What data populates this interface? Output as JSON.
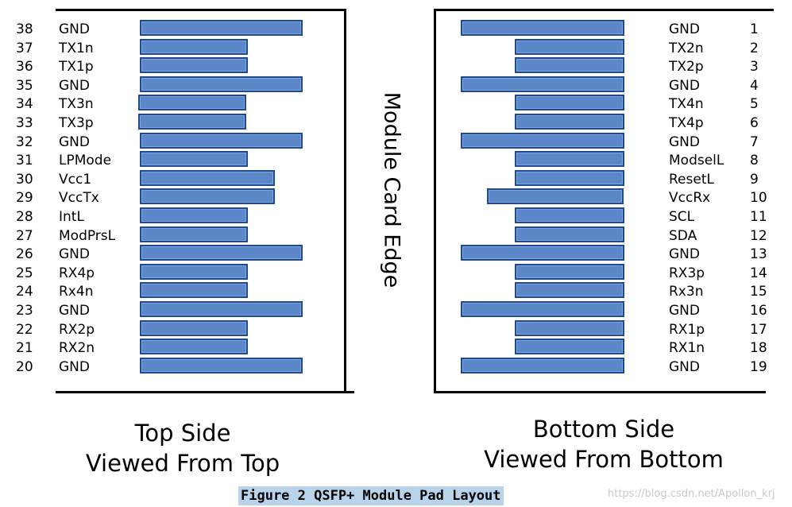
{
  "top_side": {
    "caption_line1": "Top Side",
    "caption_line2": "Viewed From Top",
    "pins": [
      {
        "num": "38",
        "label": "GND",
        "pad": "ground"
      },
      {
        "num": "37",
        "label": "TX1n",
        "pad": "signal"
      },
      {
        "num": "36",
        "label": "TX1p",
        "pad": "signal"
      },
      {
        "num": "35",
        "label": "GND",
        "pad": "ground"
      },
      {
        "num": "34",
        "label": "TX3n",
        "pad": "signal"
      },
      {
        "num": "33",
        "label": "TX3p",
        "pad": "signal"
      },
      {
        "num": "32",
        "label": "GND",
        "pad": "ground"
      },
      {
        "num": "31",
        "label": "LPMode",
        "pad": "signal"
      },
      {
        "num": "30",
        "label": "Vcc1",
        "pad": "power"
      },
      {
        "num": "29",
        "label": "VccTx",
        "pad": "power"
      },
      {
        "num": "28",
        "label": "IntL",
        "pad": "signal"
      },
      {
        "num": "27",
        "label": "ModPrsL",
        "pad": "signal"
      },
      {
        "num": "26",
        "label": "GND",
        "pad": "ground"
      },
      {
        "num": "25",
        "label": "RX4p",
        "pad": "signal"
      },
      {
        "num": "24",
        "label": "Rx4n",
        "pad": "signal"
      },
      {
        "num": "23",
        "label": "GND",
        "pad": "ground"
      },
      {
        "num": "22",
        "label": "RX2p",
        "pad": "signal"
      },
      {
        "num": "21",
        "label": "RX2n",
        "pad": "signal"
      },
      {
        "num": "20",
        "label": "GND",
        "pad": "ground"
      }
    ]
  },
  "bottom_side": {
    "caption_line1": "Bottom Side",
    "caption_line2": "Viewed From Bottom",
    "pins": [
      {
        "num": "1",
        "label": "GND",
        "pad": "ground"
      },
      {
        "num": "2",
        "label": "TX2n",
        "pad": "signal"
      },
      {
        "num": "3",
        "label": "TX2p",
        "pad": "signal"
      },
      {
        "num": "4",
        "label": "GND",
        "pad": "ground"
      },
      {
        "num": "5",
        "label": "TX4n",
        "pad": "signal"
      },
      {
        "num": "6",
        "label": "TX4p",
        "pad": "signal"
      },
      {
        "num": "7",
        "label": "GND",
        "pad": "ground"
      },
      {
        "num": "8",
        "label": "ModselL",
        "pad": "signal"
      },
      {
        "num": "9",
        "label": "ResetL",
        "pad": "signal"
      },
      {
        "num": "10",
        "label": "VccRx",
        "pad": "power"
      },
      {
        "num": "11",
        "label": "SCL",
        "pad": "signal"
      },
      {
        "num": "12",
        "label": "SDA",
        "pad": "signal"
      },
      {
        "num": "13",
        "label": "GND",
        "pad": "ground"
      },
      {
        "num": "14",
        "label": "RX3p",
        "pad": "signal"
      },
      {
        "num": "15",
        "label": "Rx3n",
        "pad": "signal"
      },
      {
        "num": "16",
        "label": "GND",
        "pad": "ground"
      },
      {
        "num": "17",
        "label": "RX1p",
        "pad": "signal"
      },
      {
        "num": "18",
        "label": "RX1n",
        "pad": "signal"
      },
      {
        "num": "19",
        "label": "GND",
        "pad": "ground"
      }
    ]
  },
  "card_edge_label": "Module Card Edge",
  "figure_title": "Figure 2 QSFP+ Module Pad Layout",
  "watermark": "https://blog.csdn.net/Apollon_krj",
  "colors": {
    "pad_fill": "#5b86c8",
    "pad_border": "#1f4b8e",
    "title_highlight": "#b9d3ea"
  }
}
